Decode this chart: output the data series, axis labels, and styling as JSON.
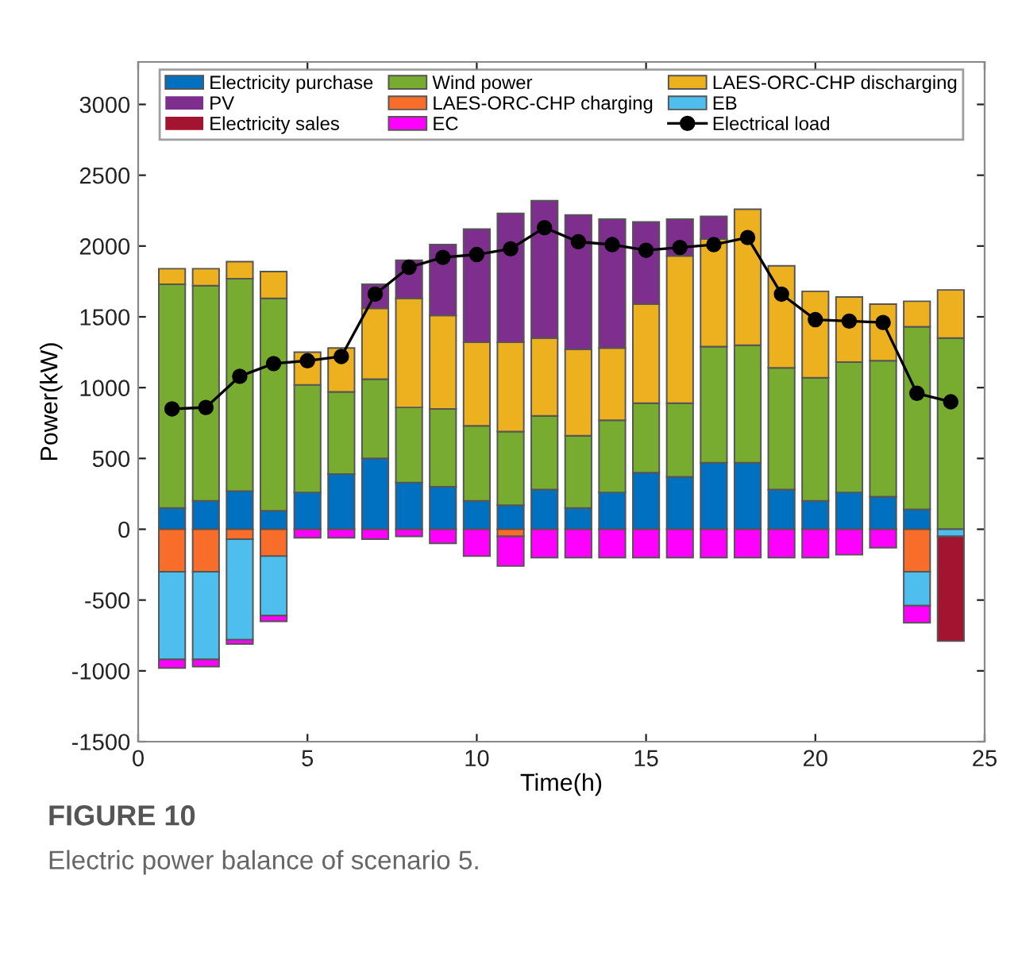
{
  "chart_data": {
    "type": "bar",
    "stacked": true,
    "xlabel": "Time(h)",
    "ylabel": "Power(kW)",
    "x": [
      1,
      2,
      3,
      4,
      5,
      6,
      7,
      8,
      9,
      10,
      11,
      12,
      13,
      14,
      15,
      16,
      17,
      18,
      19,
      20,
      21,
      22,
      23,
      24
    ],
    "xlim": [
      0,
      25
    ],
    "xticks": [
      0,
      5,
      10,
      15,
      20,
      25
    ],
    "ylim": [
      -1500,
      3300
    ],
    "yticks": [
      -1500,
      -1000,
      -500,
      0,
      500,
      1000,
      1500,
      2000,
      2500,
      3000
    ],
    "grid": false,
    "legend": "top",
    "series": [
      {
        "name": "Electricity purchase",
        "color": "#0070c0",
        "values": [
          150,
          200,
          270,
          130,
          260,
          390,
          500,
          330,
          300,
          200,
          170,
          280,
          150,
          260,
          400,
          370,
          470,
          470,
          280,
          200,
          260,
          230,
          140,
          0
        ]
      },
      {
        "name": "Wind power",
        "color": "#77ac30",
        "values": [
          1580,
          1520,
          1500,
          1500,
          760,
          580,
          560,
          530,
          550,
          530,
          520,
          520,
          510,
          510,
          490,
          520,
          820,
          830,
          860,
          870,
          920,
          960,
          1290,
          1350
        ]
      },
      {
        "name": "LAES-ORC-CHP discharging",
        "color": "#edb120",
        "values": [
          110,
          120,
          120,
          190,
          230,
          310,
          500,
          770,
          660,
          590,
          630,
          550,
          610,
          510,
          700,
          1040,
          760,
          960,
          720,
          610,
          460,
          400,
          180,
          340
        ]
      },
      {
        "name": "PV",
        "color": "#7e2f8e",
        "values": [
          0,
          0,
          0,
          0,
          0,
          0,
          170,
          270,
          500,
          800,
          910,
          970,
          950,
          910,
          580,
          260,
          160,
          0,
          0,
          0,
          0,
          0,
          0,
          0
        ]
      },
      {
        "name": "LAES-ORC-CHP charging",
        "color": "#f96d2b",
        "values": [
          -300,
          -300,
          -70,
          -190,
          0,
          0,
          0,
          0,
          0,
          0,
          -50,
          0,
          0,
          0,
          0,
          0,
          0,
          0,
          0,
          0,
          0,
          0,
          -300,
          0
        ]
      },
      {
        "name": "EB",
        "color": "#4dbeee",
        "values": [
          -620,
          -620,
          -710,
          -420,
          0,
          0,
          0,
          0,
          0,
          0,
          0,
          0,
          0,
          0,
          0,
          0,
          0,
          0,
          0,
          0,
          0,
          0,
          -240,
          -50
        ]
      },
      {
        "name": "Electricity sales",
        "color": "#a2142f",
        "values": [
          0,
          0,
          0,
          0,
          0,
          0,
          0,
          0,
          0,
          0,
          0,
          0,
          0,
          0,
          0,
          0,
          0,
          0,
          0,
          0,
          0,
          0,
          0,
          -740
        ]
      },
      {
        "name": "EC",
        "color": "#ff00ff",
        "values": [
          -60,
          -50,
          -30,
          -40,
          -60,
          -60,
          -70,
          -50,
          -100,
          -190,
          -210,
          -200,
          -200,
          -200,
          -200,
          -200,
          -200,
          -200,
          -200,
          -200,
          -180,
          -130,
          -120,
          0
        ]
      },
      {
        "name": "Electrical load",
        "type": "line",
        "color": "#000000",
        "marker": "circle",
        "values": [
          850,
          860,
          1080,
          1170,
          1190,
          1220,
          1660,
          1850,
          1920,
          1940,
          1980,
          2130,
          2030,
          2010,
          1970,
          1990,
          2010,
          2060,
          1660,
          1480,
          1470,
          1460,
          960,
          900
        ]
      }
    ],
    "annotations": [
      "FIGURE 10",
      "Electric power balance of scenario 5."
    ]
  }
}
